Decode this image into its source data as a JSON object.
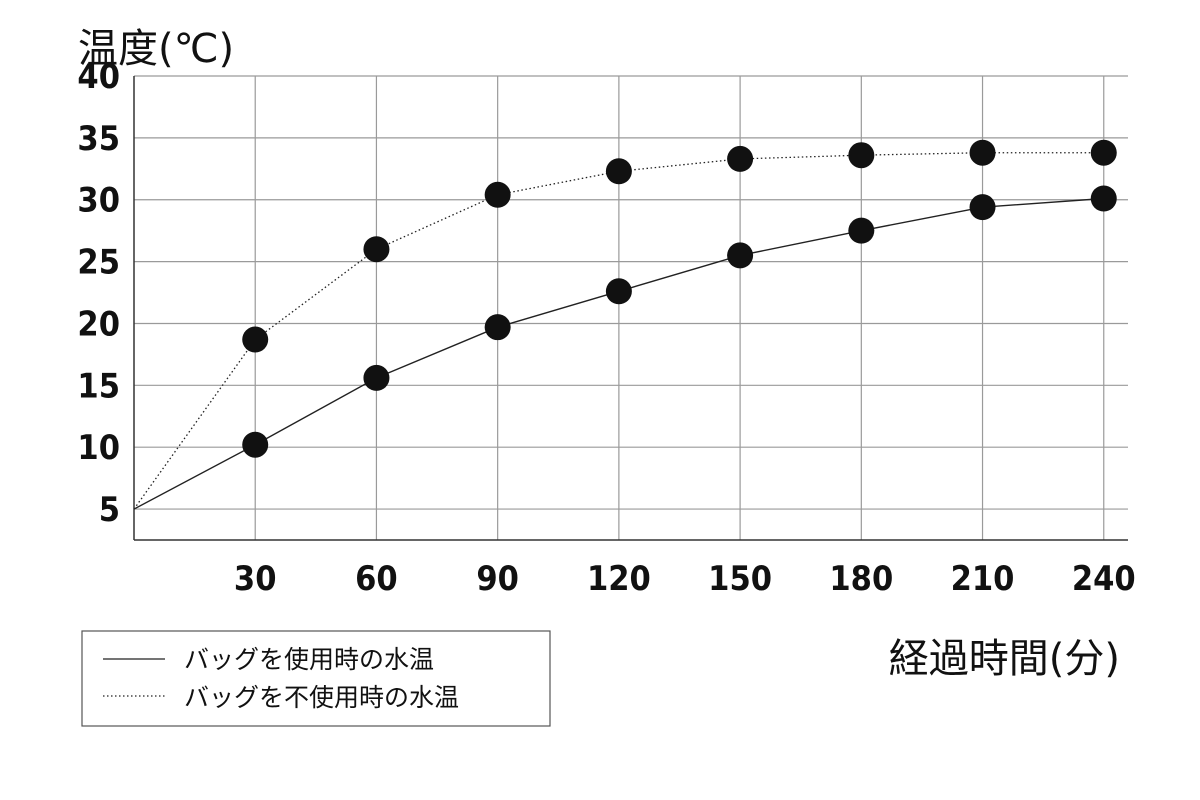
{
  "chart_data": {
    "type": "line",
    "ylabel": "温度(℃)",
    "xlabel": "経過時間(分)",
    "ylim": [
      2.5,
      40
    ],
    "xlim": [
      0,
      246
    ],
    "yticks": [
      5,
      10,
      15,
      20,
      25,
      30,
      35,
      40
    ],
    "xticks": [
      30,
      60,
      90,
      120,
      150,
      180,
      210,
      240
    ],
    "xtick_labels": [
      "30",
      "60",
      "90",
      "120",
      "150",
      "180",
      "210",
      "240"
    ],
    "grid": true,
    "legend_placement": "bottom-left",
    "series": [
      {
        "name": "バッグを使用時の水温",
        "line_style": "solid",
        "x": [
          0,
          30,
          60,
          90,
          120,
          150,
          180,
          210,
          240
        ],
        "y": [
          5,
          10.2,
          15.6,
          19.7,
          22.6,
          25.5,
          27.5,
          29.4,
          30.1
        ]
      },
      {
        "name": "バッグを不使用時の水温",
        "line_style": "dotted",
        "x": [
          0,
          30,
          60,
          90,
          120,
          150,
          180,
          210,
          240
        ],
        "y": [
          5,
          18.7,
          26.0,
          30.4,
          32.3,
          33.3,
          33.6,
          33.8,
          33.8
        ]
      }
    ],
    "colors": {
      "line": "#222222",
      "marker": "#111111",
      "grid": "#9a9a9a"
    }
  }
}
